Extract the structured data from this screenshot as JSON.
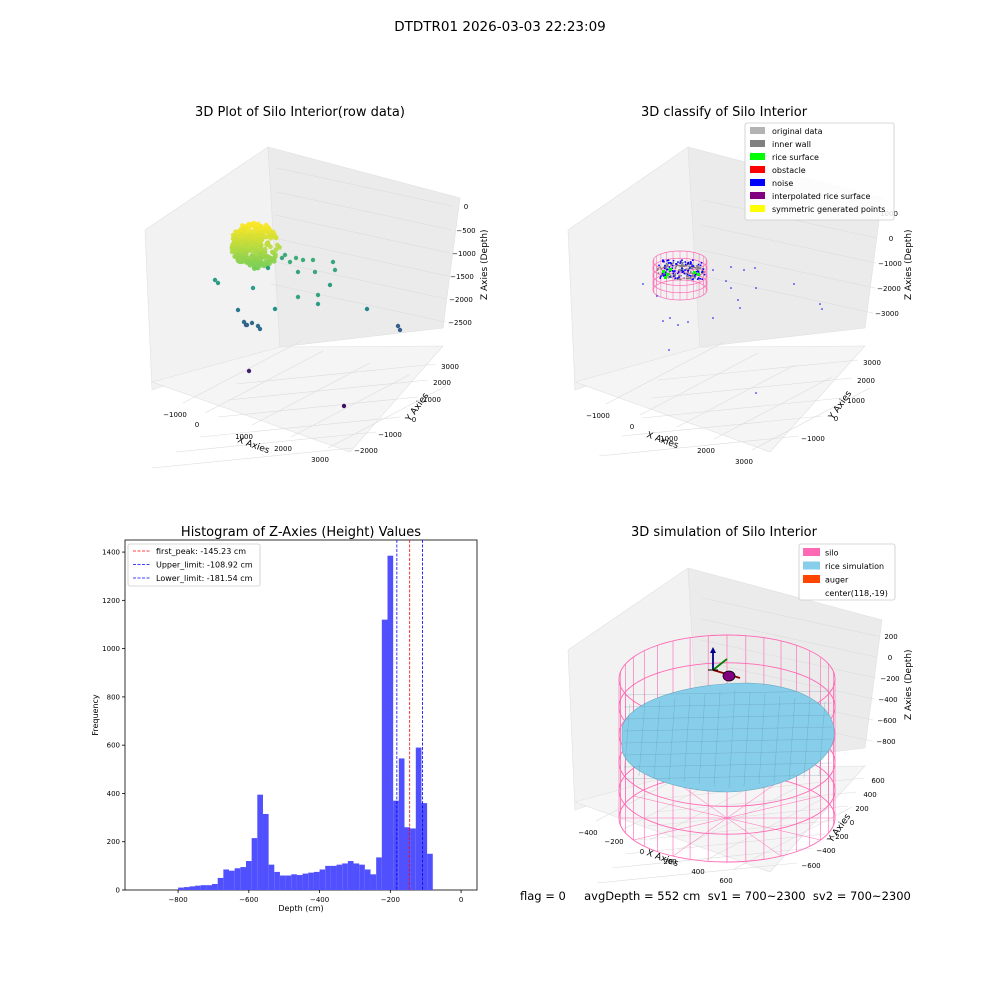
{
  "suptitle": "DTDTR01 2026-03-03 22:23:09",
  "footer": "flag = 0     avgDepth = 552 cm  sv1 = 700~2300  sv2 = 700~2300",
  "colors": {
    "rice_surface": "#00ff00",
    "noise": "#0000ff",
    "inner_wall": "#808080",
    "original_data": "#b3b3b3",
    "obstacle": "#ff0000",
    "interpolated": "#800080",
    "symmetric": "#ffff00",
    "silo": "#ff69b4",
    "rice_sim": "#87ceeb",
    "auger": "#ff4500",
    "hist_bar": "#5050ff"
  },
  "chart_data": [
    {
      "type": "scatter",
      "subtype": "3d",
      "title": "3D Plot of Silo Interior(row data)",
      "xlabel": "X Axies",
      "ylabel": "Y Axies",
      "zlabel": "Z Axies (Depth)",
      "xticks": [
        "−1000",
        "0",
        "1000",
        "2000",
        "3000"
      ],
      "yticks": [
        "−2000",
        "−1000",
        "0",
        "1000",
        "2000",
        "3000"
      ],
      "zticks": [
        "0",
        "−500",
        "−1000",
        "−1500",
        "−2000",
        "−2500"
      ],
      "xlim": [
        -1500,
        3500
      ],
      "ylim": [
        -2100,
        3300
      ],
      "zlim": [
        -2900,
        100
      ],
      "colormap": "viridis",
      "grid": true
    },
    {
      "type": "scatter",
      "subtype": "3d",
      "title": "3D classify of Silo Interior",
      "xlabel": "X Axies",
      "ylabel": "Y Axies",
      "zlabel": "Z Axies (Depth)",
      "xticks": [
        "−1000",
        "0",
        "1000",
        "2000",
        "3000"
      ],
      "yticks": [
        "−1000",
        "0",
        "1000",
        "2000",
        "3000"
      ],
      "zticks": [
        "0",
        "−1000",
        "−2000",
        "−3000"
      ],
      "zticks_extra": [
        "1000"
      ],
      "legend_position": "top-right",
      "legend": [
        "original data",
        "inner wall",
        "rice surface",
        "obstacle",
        "noise",
        "interpolated rice surface",
        "symmetric generated points"
      ],
      "grid": true
    },
    {
      "type": "bar",
      "subtype": "histogram",
      "title": "Histogram of Z-Axies (Height) Values",
      "xlabel": "Depth (cm)",
      "ylabel": "Frequency",
      "xticks": [
        "−800",
        "−600",
        "−400",
        "−200",
        "0"
      ],
      "yticks": [
        "0",
        "200",
        "400",
        "600",
        "800",
        "1000",
        "1200",
        "1400"
      ],
      "xlim": [
        -950,
        45
      ],
      "ylim": [
        0,
        1450
      ],
      "bin_start": -800,
      "bin_width": 16,
      "values": [
        10,
        12,
        15,
        18,
        20,
        20,
        25,
        50,
        85,
        80,
        90,
        95,
        120,
        215,
        395,
        315,
        105,
        75,
        60,
        60,
        65,
        62,
        68,
        72,
        75,
        85,
        100,
        100,
        105,
        110,
        120,
        110,
        105,
        85,
        65,
        135,
        1120,
        1385,
        370,
        545,
        260,
        255,
        590,
        360,
        150
      ],
      "lines": [
        {
          "label": "first_peak: -145.23 cm",
          "value": -145.23,
          "color": "#ff0000"
        },
        {
          "label": "Upper_limit: -108.92 cm",
          "value": -108.92,
          "color": "#0000ff"
        },
        {
          "label": "Lower_limit: -181.54 cm",
          "value": -181.54,
          "color": "#0000ff"
        }
      ],
      "legend_position": "top-left"
    },
    {
      "type": "scatter",
      "subtype": "3d-surface",
      "title": "3D simulation of Silo Interior",
      "xlabel": "X Axies",
      "ylabel": "Y Axies",
      "zlabel": "Z Axies (Depth)",
      "xticks": [
        "−400",
        "−200",
        "0",
        "200",
        "400",
        "600"
      ],
      "yticks": [
        "−600",
        "−400",
        "−200",
        "0",
        "200",
        "400",
        "600"
      ],
      "zticks": [
        "200",
        "0",
        "−200",
        "−400",
        "−600",
        "−800"
      ],
      "legend_position": "top-right",
      "legend": [
        "silo",
        "rice simulation",
        "auger",
        "center(118,-19)"
      ],
      "grid": true
    }
  ]
}
